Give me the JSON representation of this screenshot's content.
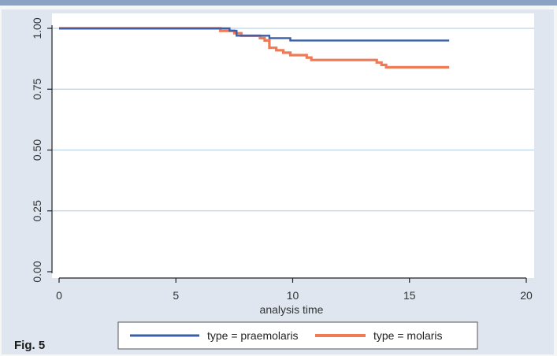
{
  "figure_label": "Fig. 5",
  "chart_data": {
    "type": "line",
    "title": "",
    "xlabel": "analysis time",
    "ylabel": "",
    "xlim": [
      0,
      20
    ],
    "ylim": [
      0,
      1
    ],
    "x_ticks": [
      0,
      5,
      10,
      15,
      20
    ],
    "y_ticks": [
      0.0,
      0.25,
      0.5,
      0.75,
      1.0
    ],
    "x_tick_labels": [
      "0",
      "5",
      "10",
      "15",
      "20"
    ],
    "y_tick_labels": [
      "0.00",
      "0.25",
      "0.50",
      "0.75",
      "1.00"
    ],
    "grid": "horizontal",
    "legend_position": "bottom",
    "series": [
      {
        "name": "type = praemolaris",
        "color": "#3a5fa6",
        "step": true,
        "points": [
          [
            0,
            1.0
          ],
          [
            7.3,
            1.0
          ],
          [
            7.3,
            0.99
          ],
          [
            7.6,
            0.99
          ],
          [
            7.6,
            0.97
          ],
          [
            9.0,
            0.97
          ],
          [
            9.0,
            0.96
          ],
          [
            9.9,
            0.96
          ],
          [
            9.9,
            0.95
          ],
          [
            16.7,
            0.95
          ]
        ]
      },
      {
        "name": "type = molaris",
        "color": "#ef7a55",
        "step": true,
        "points": [
          [
            0,
            1.0
          ],
          [
            6.9,
            1.0
          ],
          [
            6.9,
            0.99
          ],
          [
            7.5,
            0.99
          ],
          [
            7.5,
            0.98
          ],
          [
            7.8,
            0.98
          ],
          [
            7.8,
            0.97
          ],
          [
            8.6,
            0.97
          ],
          [
            8.6,
            0.96
          ],
          [
            8.8,
            0.96
          ],
          [
            8.8,
            0.95
          ],
          [
            9.0,
            0.95
          ],
          [
            9.0,
            0.92
          ],
          [
            9.3,
            0.92
          ],
          [
            9.3,
            0.91
          ],
          [
            9.6,
            0.91
          ],
          [
            9.6,
            0.9
          ],
          [
            9.9,
            0.9
          ],
          [
            9.9,
            0.89
          ],
          [
            10.6,
            0.89
          ],
          [
            10.6,
            0.88
          ],
          [
            10.8,
            0.88
          ],
          [
            10.8,
            0.87
          ],
          [
            13.6,
            0.87
          ],
          [
            13.6,
            0.86
          ],
          [
            13.8,
            0.86
          ],
          [
            13.8,
            0.85
          ],
          [
            14.0,
            0.85
          ],
          [
            14.0,
            0.84
          ],
          [
            16.7,
            0.84
          ]
        ]
      }
    ]
  }
}
